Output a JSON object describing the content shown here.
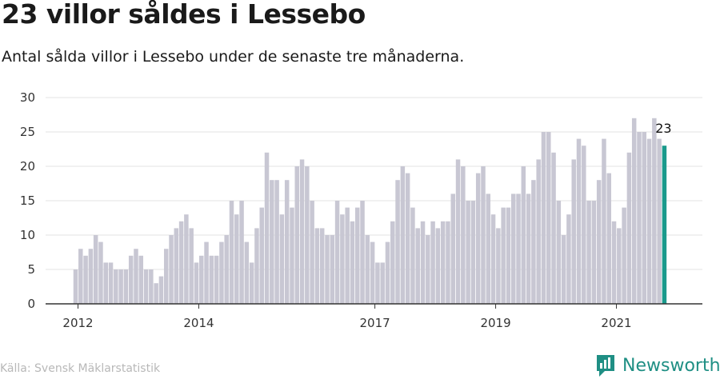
{
  "header": {
    "title": "23 villor såldes i Lessebo",
    "subtitle": "Antal sålda villor i Lessebo under de senaste tre månaderna."
  },
  "footer": {
    "source": "Källa: Svensk Mäklarstatistik",
    "brand": "Newsworthy",
    "brand_icon": "newsworthy-logo-icon"
  },
  "colors": {
    "bar": "#c8c7d3",
    "highlight": "#1a9a8c",
    "grid": "#e3e3e3",
    "axis": "#333333",
    "brand": "#1f8f84"
  },
  "chart_data": {
    "type": "bar",
    "title": "Antal sålda villor i Lessebo under de senaste tre månaderna.",
    "xlabel": "",
    "ylabel": "",
    "ylim": [
      0,
      30
    ],
    "yticks": [
      0,
      5,
      10,
      15,
      20,
      25,
      30
    ],
    "grid": true,
    "x_start": "2012-01",
    "x_end": "2021-10",
    "xtick_labels": [
      {
        "label": "2012",
        "month": "2012-01"
      },
      {
        "label": "2014",
        "month": "2014-01"
      },
      {
        "label": "2017",
        "month": "2016-12"
      },
      {
        "label": "2019",
        "month": "2018-12"
      },
      {
        "label": "2021",
        "month": "2020-12"
      }
    ],
    "values": [
      5,
      8,
      7,
      8,
      10,
      9,
      6,
      6,
      5,
      5,
      5,
      7,
      8,
      7,
      5,
      5,
      3,
      4,
      8,
      10,
      11,
      12,
      13,
      11,
      6,
      7,
      9,
      7,
      7,
      9,
      10,
      15,
      13,
      15,
      9,
      6,
      11,
      14,
      22,
      18,
      18,
      13,
      18,
      14,
      20,
      21,
      20,
      15,
      11,
      11,
      10,
      10,
      15,
      13,
      14,
      12,
      14,
      15,
      10,
      9,
      6,
      6,
      9,
      12,
      18,
      20,
      19,
      14,
      11,
      12,
      10,
      12,
      11,
      12,
      12,
      16,
      21,
      20,
      15,
      15,
      19,
      20,
      16,
      13,
      11,
      14,
      14,
      16,
      16,
      20,
      16,
      18,
      21,
      25,
      25,
      22,
      15,
      10,
      13,
      21,
      24,
      23,
      15,
      15,
      18,
      24,
      19,
      12,
      11,
      14,
      22,
      27,
      25,
      25,
      24,
      27,
      24,
      23
    ],
    "highlight": {
      "index": 117,
      "value": 23,
      "label": "23"
    }
  }
}
